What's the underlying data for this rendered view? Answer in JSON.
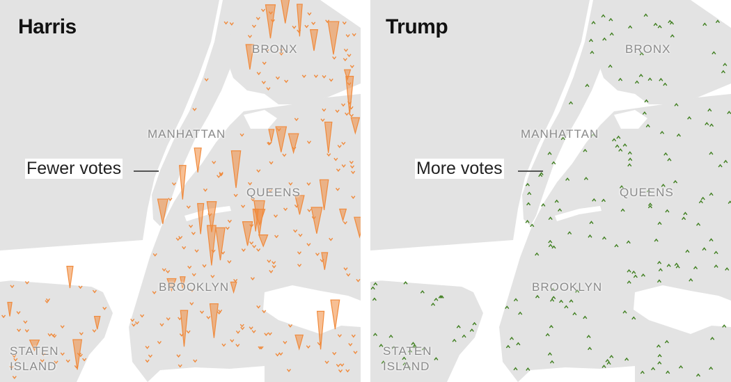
{
  "panels": [
    {
      "id": "harris",
      "title": "Harris",
      "annotation": "Fewer votes",
      "color": "#f08a3c",
      "direction": "down"
    },
    {
      "id": "trump",
      "title": "Trump",
      "annotation": "More votes",
      "color": "#3f7f1f",
      "direction": "up"
    }
  ],
  "boroughs": {
    "bronx": "BRONX",
    "manhattan": "MANHATTAN",
    "queens": "QUEENS",
    "brooklyn": "BROOKLYN",
    "staten_island_line1": "STATEN",
    "staten_island_line2": "ISLAND"
  },
  "colors": {
    "land": "#e3e3e3",
    "water": "#ffffff",
    "harris_spike": "#f08a3c",
    "trump_spike": "#3f7f1f"
  }
}
